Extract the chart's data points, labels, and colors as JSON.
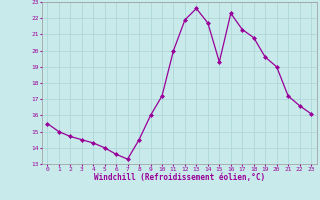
{
  "x": [
    0,
    1,
    2,
    3,
    4,
    5,
    6,
    7,
    8,
    9,
    10,
    11,
    12,
    13,
    14,
    15,
    16,
    17,
    18,
    19,
    20,
    21,
    22,
    23
  ],
  "y": [
    15.5,
    15.0,
    14.7,
    14.5,
    14.3,
    14.0,
    13.6,
    13.3,
    14.5,
    16.0,
    17.2,
    20.0,
    21.9,
    22.6,
    21.7,
    19.3,
    22.3,
    21.3,
    20.8,
    19.6,
    19.0,
    17.2,
    16.6,
    16.1
  ],
  "line_color": "#990099",
  "marker": "D",
  "markersize": 2.0,
  "linewidth": 0.9,
  "xlabel": "Windchill (Refroidissement éolien,°C)",
  "ylim": [
    13,
    23
  ],
  "xlim": [
    -0.5,
    23.5
  ],
  "yticks": [
    13,
    14,
    15,
    16,
    17,
    18,
    19,
    20,
    21,
    22,
    23
  ],
  "xticks": [
    0,
    1,
    2,
    3,
    4,
    5,
    6,
    7,
    8,
    9,
    10,
    11,
    12,
    13,
    14,
    15,
    16,
    17,
    18,
    19,
    20,
    21,
    22,
    23
  ],
  "bg_color": "#c8eaea",
  "grid_color": "#b0d8d8",
  "spine_color": "#999999",
  "tick_color": "#990099",
  "label_color": "#990099"
}
